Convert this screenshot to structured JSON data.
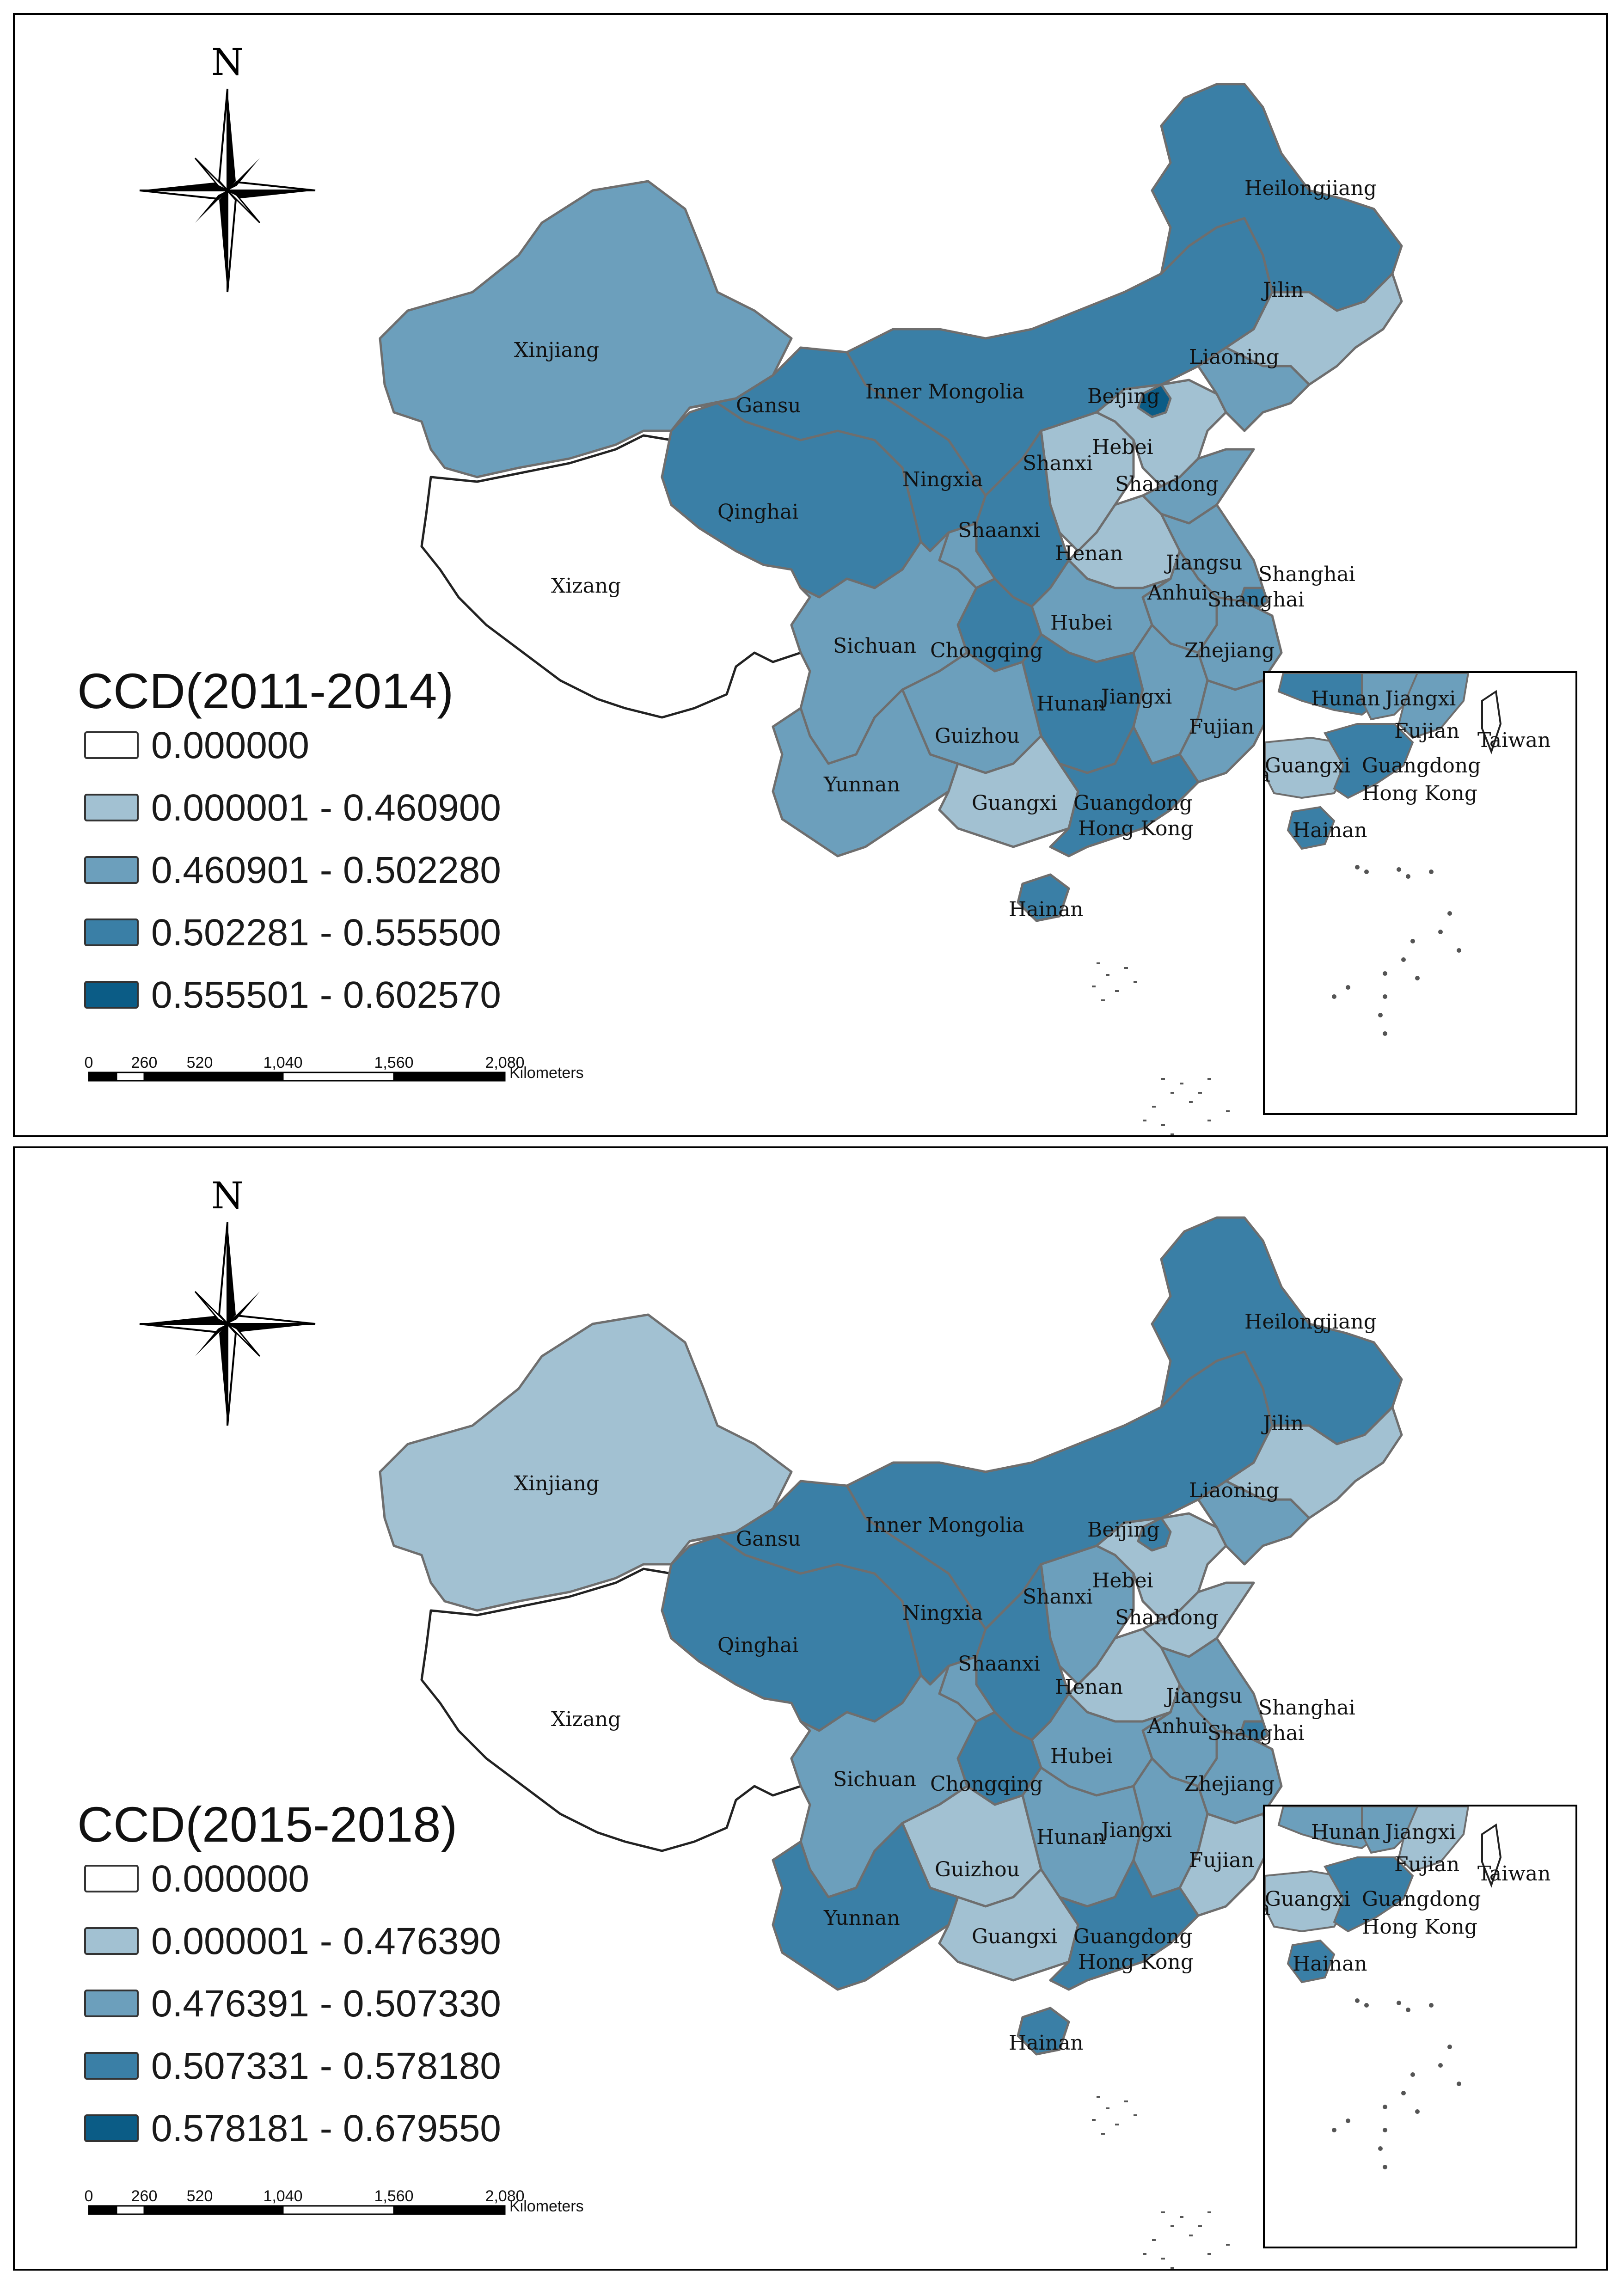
{
  "north_label": "N",
  "scale": {
    "ticks": [
      "0",
      "260",
      "520",
      "1,040",
      "1,560",
      "2,080"
    ],
    "unit": "Kilometers"
  },
  "colors": {
    "class0": "#ffffff",
    "class1": "#a2c1d2",
    "class2": "#6c9fbc",
    "class3": "#3a7fa6",
    "class4": "#0b5c86",
    "border": "#6e6e6e"
  },
  "province_labels": {
    "xinjiang": "Xinjiang",
    "xizang": "Xizang",
    "gansu": "Gansu",
    "inner_mongolia": "Inner Mongolia",
    "qinghai": "Qinghai",
    "ningxia": "Ningxia",
    "shanxi": "Shanxi",
    "shaanxi": "Shaanxi",
    "hebei": "Hebei",
    "beijing": "Beijing",
    "shandong": "Shandong",
    "henan": "Henan",
    "jiangsu": "Jiangsu",
    "anhui": "Anhui",
    "shanghai": "Shanghai",
    "shanghai2": "Shanghai",
    "hubei": "Hubei",
    "zhejiang": "Zhejiang",
    "sichuan": "Sichuan",
    "chongqing": "Chongqing",
    "hunan": "Hunan",
    "jiangxi": "Jiangxi",
    "fujian": "Fujian",
    "guizhou": "Guizhou",
    "yunnan": "Yunnan",
    "guangxi": "Guangxi",
    "guangdong": "Guangdong",
    "hongkong": "Hong Kong",
    "hainan": "Hainan",
    "heilongjiang": "Heilongjiang",
    "jilin": "Jilin",
    "liaoning": "Liaoning"
  },
  "inset_labels": {
    "hunan": "Hunan",
    "jiangxi": "Jiangxi",
    "fujian": "Fujian",
    "taiwan": "Taiwan",
    "ta": "Ta",
    "guangxi": "Guangxi",
    "guangdong": "Guangdong",
    "hongkong": "Hong Kong",
    "hainan": "Hainan"
  },
  "maps": [
    {
      "legend_title": "CCD(2011-2014)",
      "legend": [
        {
          "range": "0.000000",
          "class": 0
        },
        {
          "range": "0.000001 - 0.460900",
          "class": 1
        },
        {
          "range": "0.460901 - 0.502280",
          "class": 2
        },
        {
          "range": "0.502281 - 0.555500",
          "class": 3
        },
        {
          "range": "0.555501 - 0.602570",
          "class": 4
        }
      ],
      "provinces": {
        "xinjiang": 2,
        "xizang": 0,
        "gansu": 3,
        "inner_mongolia": 3,
        "qinghai": 3,
        "ningxia": 2,
        "shanxi": 1,
        "shaanxi": 3,
        "hebei": 1,
        "beijing": 4,
        "shandong": 2,
        "henan": 1,
        "jiangsu": 2,
        "anhui": 2,
        "shanghai": 3,
        "hubei": 2,
        "zhejiang": 2,
        "sichuan": 2,
        "chongqing": 3,
        "hunan": 3,
        "jiangxi": 2,
        "fujian": 2,
        "guizhou": 2,
        "yunnan": 2,
        "guangxi": 1,
        "guangdong": 3,
        "hainan": 3,
        "heilongjiang": 3,
        "jilin": 1,
        "liaoning": 2,
        "taiwan": 0
      }
    },
    {
      "legend_title": "CCD(2015-2018)",
      "legend": [
        {
          "range": "0.000000",
          "class": 0
        },
        {
          "range": "0.000001 - 0.476390",
          "class": 1
        },
        {
          "range": "0.476391 - 0.507330",
          "class": 2
        },
        {
          "range": "0.507331 - 0.578180",
          "class": 3
        },
        {
          "range": "0.578181 - 0.679550",
          "class": 4
        }
      ],
      "provinces": {
        "xinjiang": 1,
        "xizang": 0,
        "gansu": 3,
        "inner_mongolia": 3,
        "qinghai": 3,
        "ningxia": 2,
        "shanxi": 2,
        "shaanxi": 3,
        "hebei": 1,
        "beijing": 3,
        "shandong": 1,
        "henan": 1,
        "jiangsu": 2,
        "anhui": 2,
        "shanghai": 3,
        "hubei": 2,
        "zhejiang": 2,
        "sichuan": 2,
        "chongqing": 3,
        "hunan": 2,
        "jiangxi": 2,
        "fujian": 1,
        "guizhou": 1,
        "yunnan": 3,
        "guangxi": 1,
        "guangdong": 3,
        "hainan": 3,
        "heilongjiang": 3,
        "jilin": 1,
        "liaoning": 2,
        "taiwan": 0
      }
    }
  ]
}
